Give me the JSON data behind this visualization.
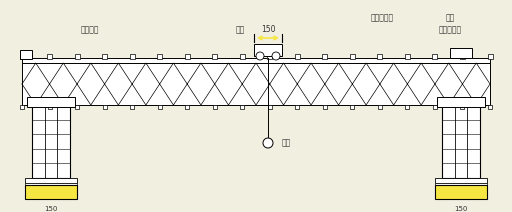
{
  "bg_color": "#f0efe0",
  "line_color": "#000000",
  "yellow_color": "#f5e642",
  "text_color": "#333333",
  "fig_width": 5.12,
  "fig_height": 2.12,
  "dpi": 100,
  "labels": {
    "left_crane": "伴拱导车",
    "center_crane": "天车",
    "right_top1": "反座导树机",
    "right_top2": "天车",
    "right_top3": "左引导树机",
    "hook": "吸锥",
    "dim_150": "150",
    "left_dim": "150",
    "right_dim": "150"
  }
}
